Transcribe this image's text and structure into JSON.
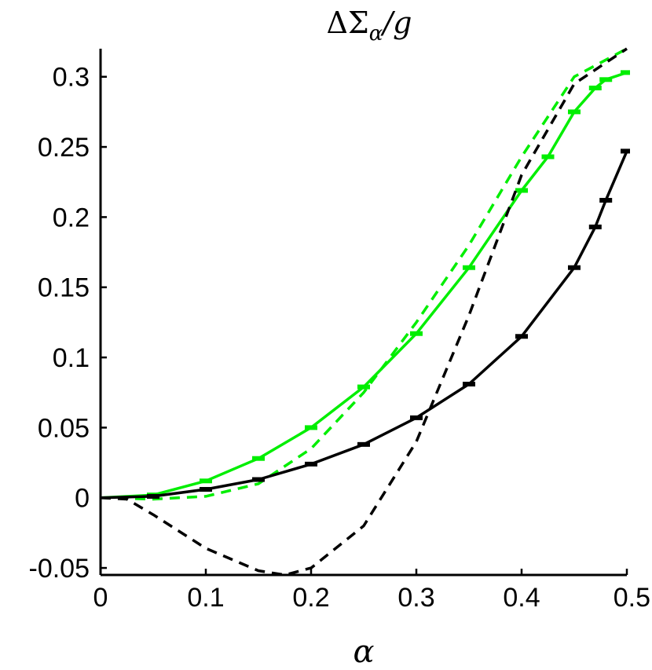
{
  "chart_data": {
    "type": "line",
    "title": "ΔΣ",
    "title_sub": "α",
    "title_tail": "/g",
    "xlabel": "α",
    "ylabel": "",
    "xlim": [
      0,
      0.5
    ],
    "ylim": [
      -0.055,
      0.32
    ],
    "xticks": [
      0,
      0.1,
      0.2,
      0.3,
      0.4,
      0.5
    ],
    "xtick_labels": [
      "0",
      "0.1",
      "0.2",
      "0.3",
      "0.4",
      "0.5"
    ],
    "yticks": [
      -0.05,
      0,
      0.05,
      0.1,
      0.15,
      0.2,
      0.25,
      0.3
    ],
    "ytick_labels": [
      "-0.05",
      "0",
      "0.05",
      "0.1",
      "0.15",
      "0.2",
      "0.25",
      "0.3"
    ],
    "grid": false,
    "legend": "none",
    "series": [
      {
        "color": "#00ee00",
        "style": "solid",
        "markers": "errorbar",
        "x": [
          0,
          0.05,
          0.1,
          0.15,
          0.2,
          0.25,
          0.3,
          0.35,
          0.4,
          0.425,
          0.45,
          0.47,
          0.48,
          0.5
        ],
        "y": [
          0,
          0.002,
          0.012,
          0.028,
          0.05,
          0.079,
          0.117,
          0.164,
          0.219,
          0.243,
          0.275,
          0.292,
          0.298,
          0.303
        ]
      },
      {
        "color": "#00ee00",
        "style": "dashed",
        "markers": "none",
        "x": [
          0,
          0.05,
          0.1,
          0.15,
          0.2,
          0.25,
          0.3,
          0.35,
          0.4,
          0.45,
          0.5
        ],
        "y": [
          0,
          -0.001,
          0.001,
          0.01,
          0.035,
          0.075,
          0.125,
          0.18,
          0.243,
          0.3,
          0.32
        ]
      },
      {
        "color": "#000000",
        "style": "solid",
        "markers": "errorbar",
        "x": [
          0,
          0.05,
          0.1,
          0.15,
          0.2,
          0.25,
          0.3,
          0.35,
          0.4,
          0.45,
          0.47,
          0.48,
          0.5
        ],
        "y": [
          0,
          0.001,
          0.006,
          0.013,
          0.024,
          0.038,
          0.057,
          0.081,
          0.115,
          0.164,
          0.193,
          0.212,
          0.247
        ]
      },
      {
        "color": "#000000",
        "style": "dashed",
        "markers": "none",
        "x": [
          0,
          0.025,
          0.05,
          0.1,
          0.15,
          0.175,
          0.2,
          0.25,
          0.3,
          0.35,
          0.4,
          0.45,
          0.5
        ],
        "y": [
          0,
          -0.001,
          -0.012,
          -0.036,
          -0.052,
          -0.055,
          -0.05,
          -0.02,
          0.04,
          0.13,
          0.23,
          0.295,
          0.32
        ]
      }
    ]
  }
}
